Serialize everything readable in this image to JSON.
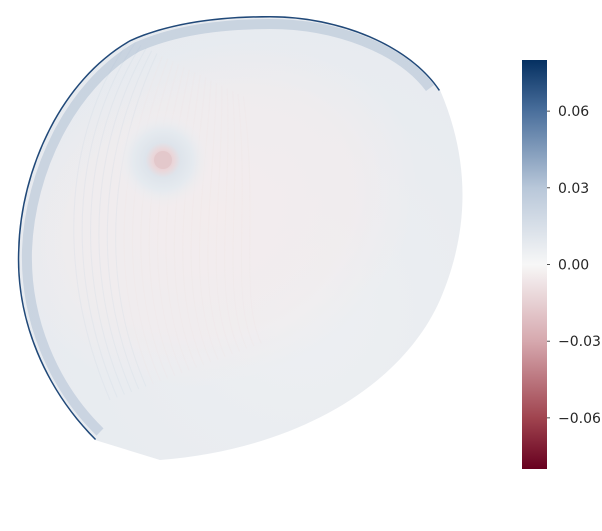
{
  "chart_data": {
    "type": "heatmap",
    "title": "",
    "colormap": {
      "name": "RdBu",
      "stops": [
        {
          "value": -0.08,
          "color": "#67001f"
        },
        {
          "value": -0.06,
          "color": "#a0444f"
        },
        {
          "value": -0.03,
          "color": "#d6a8ae"
        },
        {
          "value": 0.0,
          "color": "#f7f7f7"
        },
        {
          "value": 0.03,
          "color": "#b8c7d9"
        },
        {
          "value": 0.06,
          "color": "#4a6f9c"
        },
        {
          "value": 0.08,
          "color": "#053061"
        }
      ]
    },
    "colorbar": {
      "range": [
        -0.08,
        0.08
      ],
      "ticks": [
        0.06,
        0.03,
        0.0,
        -0.03,
        -0.06
      ],
      "tick_labels": [
        "0.06",
        "0.03",
        "0.00",
        "−0.03",
        "−0.06"
      ]
    },
    "surface": {
      "shape": "partial-sphere",
      "body_value": 0.005,
      "interior_value": -0.004,
      "rim_value": 0.08,
      "spot_ring_value": 0.012,
      "spot_core_value": -0.02
    }
  }
}
